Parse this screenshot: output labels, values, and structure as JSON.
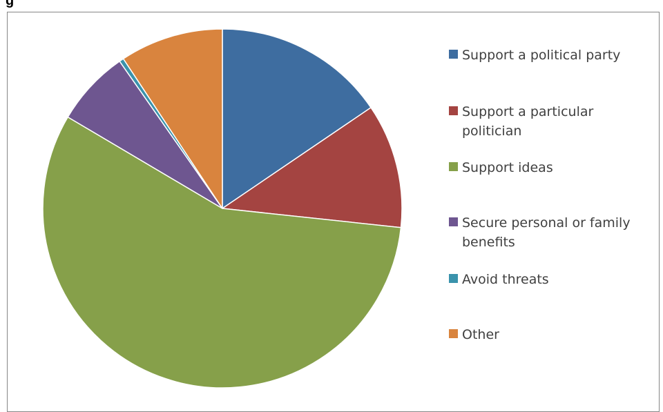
{
  "header": {
    "title": "g"
  },
  "chart_data": {
    "type": "pie",
    "title": "",
    "legend_position": "right",
    "start_angle_deg": 0,
    "direction": "clockwise",
    "slices": [
      {
        "label": "Support a political party",
        "value": 15.5,
        "color": "#3E6DA0"
      },
      {
        "label": "Support a particular politician",
        "value": 11.2,
        "color": "#A44441"
      },
      {
        "label": "Support ideas",
        "value": 56.8,
        "color": "#86A04A"
      },
      {
        "label": "Secure personal or family benefits",
        "value": 6.8,
        "color": "#6E5690"
      },
      {
        "label": "Avoid threats",
        "value": 0.4,
        "color": "#3A93AC"
      },
      {
        "label": "Other",
        "value": 9.3,
        "color": "#D9843E"
      }
    ]
  }
}
